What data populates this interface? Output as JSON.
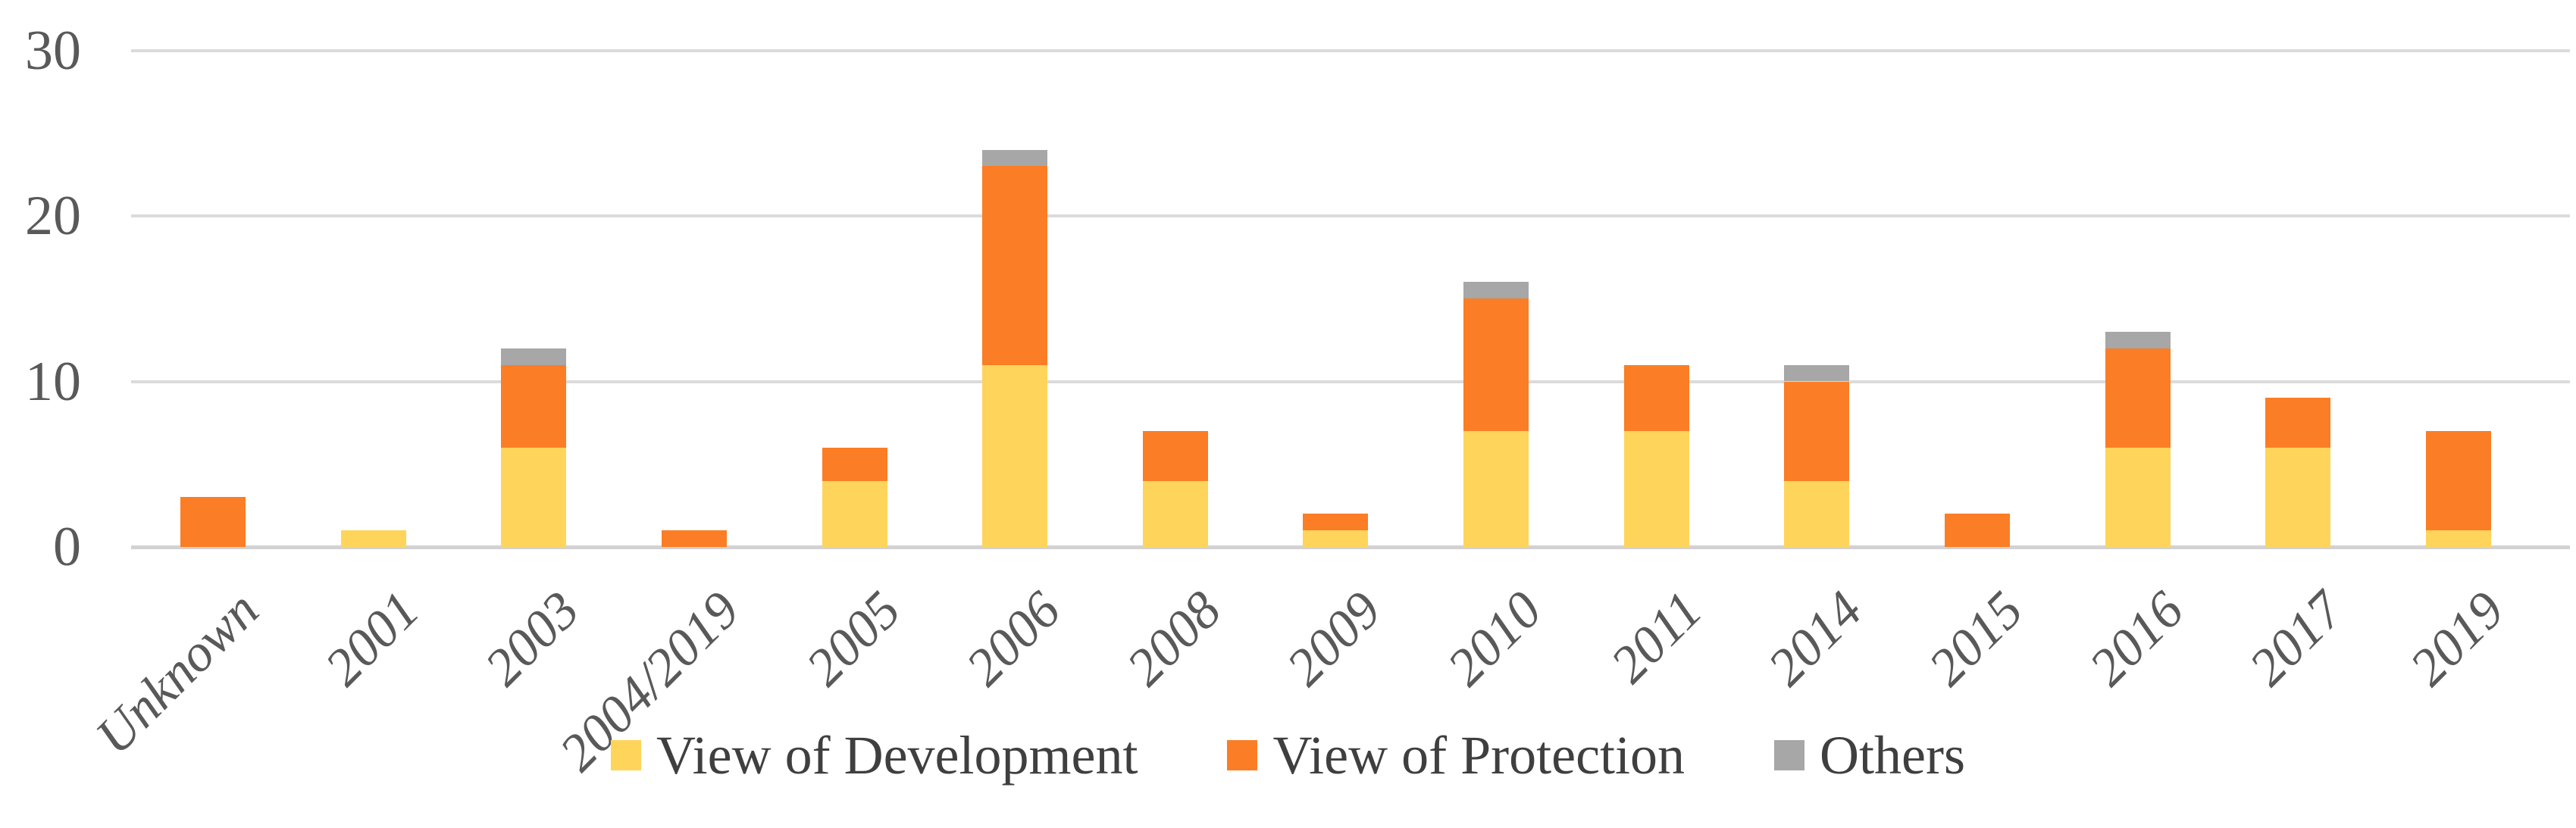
{
  "chart_data": {
    "type": "bar",
    "stacked": true,
    "title": "",
    "xlabel": "",
    "ylabel": "",
    "ylim": [
      0,
      30
    ],
    "yticks": [
      0,
      10,
      20,
      30
    ],
    "grid": true,
    "legend_position": "bottom",
    "categories": [
      "Unknown",
      "2001",
      "2003",
      "2004/2019",
      "2005",
      "2006",
      "2008",
      "2009",
      "2010",
      "2011",
      "2014",
      "2015",
      "2016",
      "2017",
      "2019"
    ],
    "series": [
      {
        "name": "View of Development",
        "color": "#FFD45A",
        "values": [
          0,
          1,
          6,
          0,
          4,
          11,
          4,
          1,
          7,
          7,
          4,
          0,
          6,
          6,
          1
        ]
      },
      {
        "name": "View of Protection",
        "color": "#FB7D25",
        "values": [
          3,
          0,
          5,
          1,
          2,
          12,
          3,
          1,
          8,
          4,
          6,
          2,
          6,
          3,
          6
        ]
      },
      {
        "name": "Others",
        "color": "#A7A7A7",
        "values": [
          0,
          0,
          1,
          0,
          0,
          1,
          0,
          0,
          1,
          0,
          1,
          0,
          1,
          0,
          0
        ]
      }
    ],
    "totals": [
      3,
      1,
      12,
      1,
      6,
      24,
      7,
      2,
      16,
      11,
      11,
      2,
      13,
      9,
      7
    ]
  }
}
